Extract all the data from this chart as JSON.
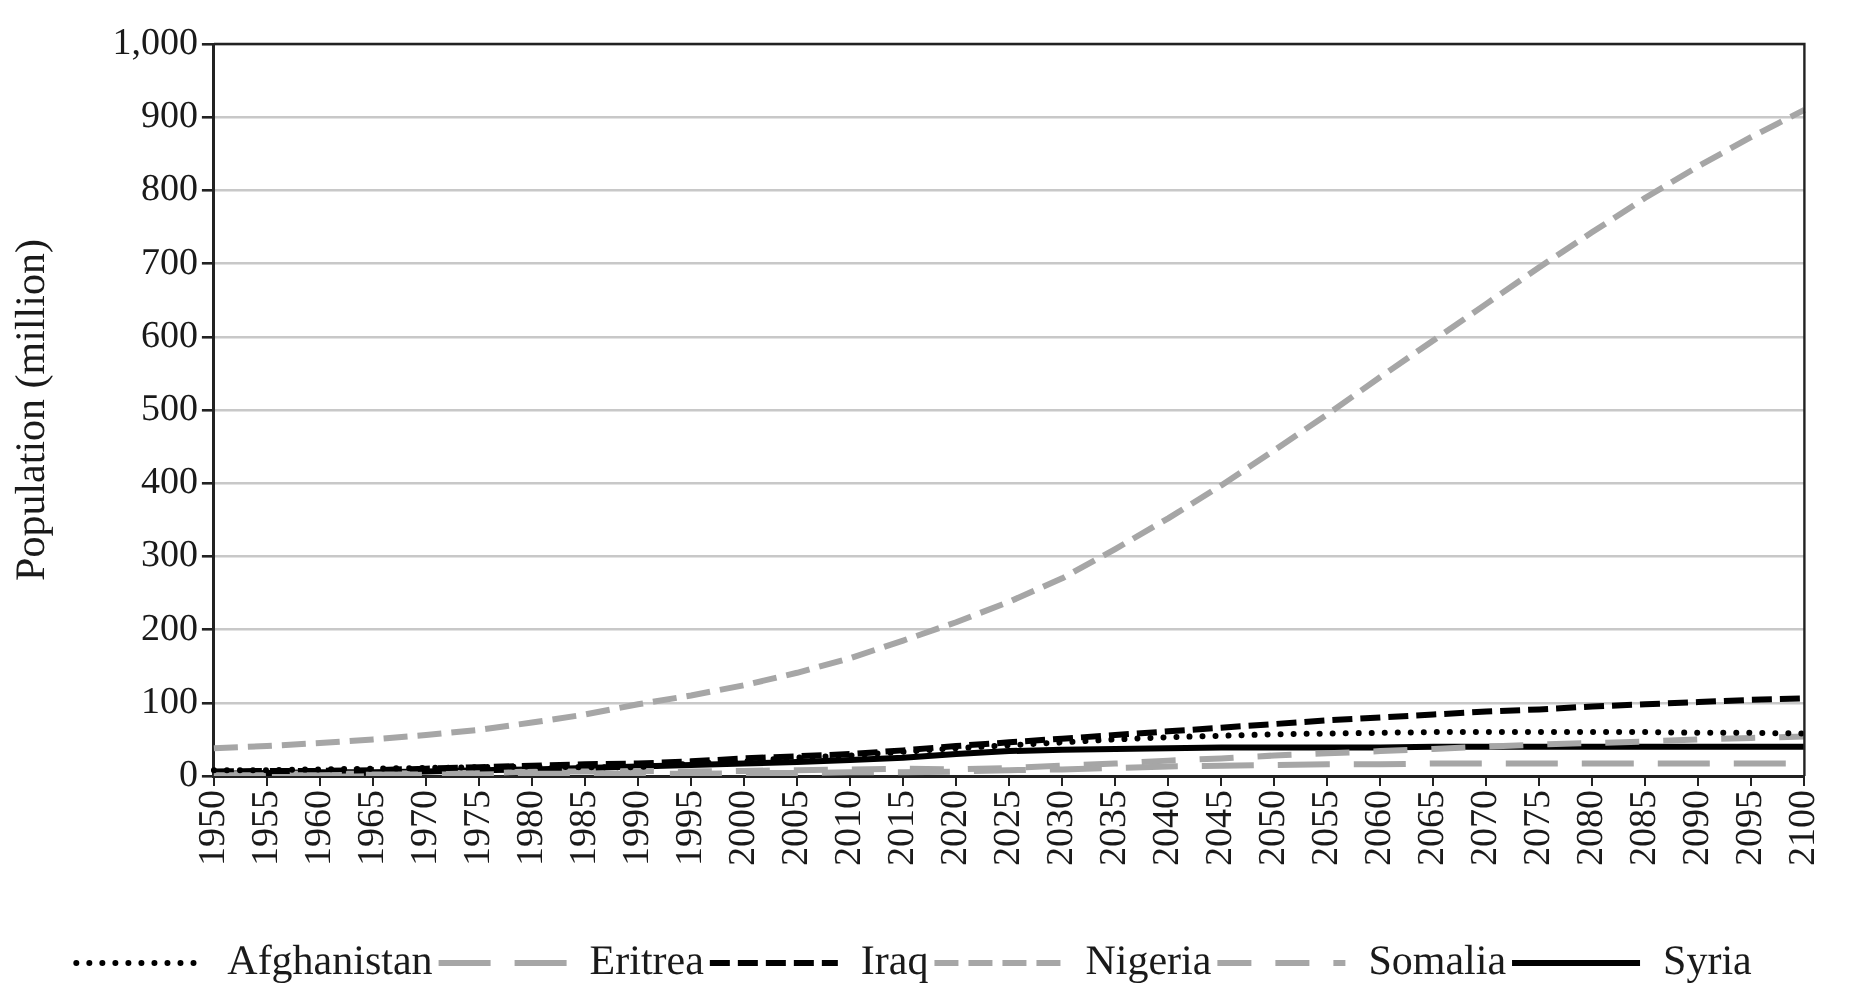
{
  "chart_data": {
    "type": "line",
    "ylabel": "Population (million)",
    "categories": [
      "1950",
      "1955",
      "1960",
      "1965",
      "1970",
      "1975",
      "1980",
      "1985",
      "1990",
      "1995",
      "2000",
      "2005",
      "2010",
      "2015",
      "2020",
      "2025",
      "2030",
      "2035",
      "2040",
      "2045",
      "2050",
      "2055",
      "2060",
      "2065",
      "2070",
      "2075",
      "2080",
      "2085",
      "2090",
      "2095",
      "2100"
    ],
    "series": [
      {
        "name": "Afghanistan",
        "color": "#000000",
        "line_style": "dotted",
        "values": [
          8,
          8,
          9,
          10,
          11,
          12,
          13,
          12,
          12,
          17,
          20,
          25,
          28,
          33,
          38,
          42,
          46,
          50,
          53,
          55,
          57,
          58,
          59,
          60,
          60,
          60,
          60,
          60,
          59,
          59,
          58
        ]
      },
      {
        "name": "Eritrea",
        "color": "#a6a6a6",
        "line_style": "dashed",
        "values": [
          1,
          1,
          1,
          2,
          2,
          2,
          3,
          3,
          3,
          3,
          4,
          4,
          5,
          5,
          6,
          8,
          9,
          11,
          13,
          14,
          15,
          16,
          16,
          17,
          17,
          17,
          17,
          17,
          17,
          17,
          17
        ]
      },
      {
        "name": "Iraq",
        "color": "#000000",
        "line_style": "dashed",
        "values": [
          6,
          7,
          7,
          8,
          10,
          12,
          14,
          16,
          17,
          20,
          24,
          27,
          30,
          35,
          41,
          46,
          51,
          56,
          61,
          66,
          71,
          76,
          80,
          84,
          88,
          91,
          95,
          98,
          101,
          104,
          106
        ]
      },
      {
        "name": "Nigeria",
        "color": "#a6a6a6",
        "line_style": "dashed",
        "values": [
          38,
          41,
          45,
          50,
          56,
          63,
          73,
          84,
          98,
          110,
          124,
          141,
          161,
          185,
          210,
          238,
          270,
          310,
          352,
          397,
          445,
          494,
          545,
          595,
          645,
          695,
          743,
          790,
          833,
          873,
          910
        ]
      },
      {
        "name": "Somalia",
        "color": "#a6a6a6",
        "line_style": "dashed",
        "values": [
          2,
          3,
          3,
          3,
          4,
          4,
          6,
          6,
          7,
          6,
          7,
          8,
          9,
          10,
          9,
          11,
          14,
          17,
          21,
          24,
          28,
          31,
          34,
          37,
          40,
          43,
          45,
          47,
          50,
          52,
          54
        ]
      },
      {
        "name": "Syria",
        "color": "#000000",
        "line_style": "solid",
        "values": [
          3,
          4,
          5,
          5,
          6,
          8,
          9,
          11,
          13,
          15,
          17,
          19,
          22,
          25,
          30,
          34,
          36,
          37,
          38,
          39,
          39,
          39,
          39,
          40,
          40,
          40,
          40,
          40,
          40,
          40,
          40
        ]
      }
    ],
    "ylim": [
      0,
      1000
    ],
    "yticks": [
      0,
      100,
      200,
      300,
      400,
      500,
      600,
      700,
      800,
      900,
      {
        "value": 1000,
        "label": "1,000"
      }
    ],
    "grid": "y",
    "legend": "bottom"
  }
}
